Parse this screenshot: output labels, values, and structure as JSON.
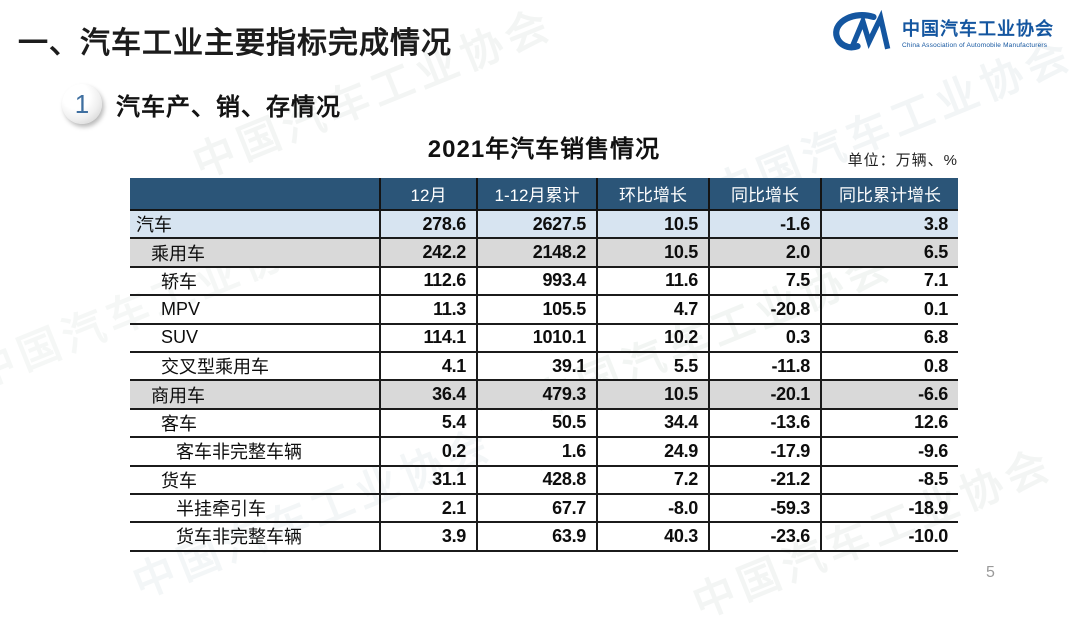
{
  "page": {
    "title": "一、汽车工业主要指标完成情况",
    "page_number": "5"
  },
  "logo": {
    "name_cn": "中国汽车工业协会",
    "name_en": "China Association of Automobile Manufacturers",
    "color": "#1456a0"
  },
  "section": {
    "number": "1",
    "title": "汽车产、销、存情况"
  },
  "table": {
    "title": "2021年汽车销售情况",
    "unit_note": "单位：万辆、%",
    "columns": [
      "",
      "12月",
      "1-12月累计",
      "环比增长",
      "同比增长",
      "同比累计增长"
    ],
    "rows": [
      {
        "label": "汽车",
        "level": 0,
        "shade": "blue",
        "values": [
          "278.6",
          "2627.5",
          "10.5",
          "-1.6",
          "3.8"
        ]
      },
      {
        "label": "乘用车",
        "level": 1,
        "shade": "gray",
        "values": [
          "242.2",
          "2148.2",
          "10.5",
          "2.0",
          "6.5"
        ]
      },
      {
        "label": "轿车",
        "level": 2,
        "shade": null,
        "values": [
          "112.6",
          "993.4",
          "11.6",
          "7.5",
          "7.1"
        ]
      },
      {
        "label": "MPV",
        "level": 2,
        "shade": null,
        "values": [
          "11.3",
          "105.5",
          "4.7",
          "-20.8",
          "0.1"
        ]
      },
      {
        "label": "SUV",
        "level": 2,
        "shade": null,
        "values": [
          "114.1",
          "1010.1",
          "10.2",
          "0.3",
          "6.8"
        ]
      },
      {
        "label": "交叉型乘用车",
        "level": 2,
        "shade": null,
        "values": [
          "4.1",
          "39.1",
          "5.5",
          "-11.8",
          "0.8"
        ]
      },
      {
        "label": "商用车",
        "level": 1,
        "shade": "gray",
        "values": [
          "36.4",
          "479.3",
          "10.5",
          "-20.1",
          "-6.6"
        ]
      },
      {
        "label": "客车",
        "level": 2,
        "shade": null,
        "values": [
          "5.4",
          "50.5",
          "34.4",
          "-13.6",
          "12.6"
        ]
      },
      {
        "label": "客车非完整车辆",
        "level": 3,
        "shade": null,
        "values": [
          "0.2",
          "1.6",
          "24.9",
          "-17.9",
          "-9.6"
        ]
      },
      {
        "label": "货车",
        "level": 2,
        "shade": null,
        "values": [
          "31.1",
          "428.8",
          "7.2",
          "-21.2",
          "-8.5"
        ]
      },
      {
        "label": "半挂牵引车",
        "level": 3,
        "shade": null,
        "values": [
          "2.1",
          "67.7",
          "-8.0",
          "-59.3",
          "-18.9"
        ]
      },
      {
        "label": "货车非完整车辆",
        "level": 3,
        "shade": null,
        "values": [
          "3.9",
          "63.9",
          "40.3",
          "-23.6",
          "-10.0"
        ]
      }
    ]
  },
  "watermark": {
    "text": "中国汽车工业协会"
  },
  "colors": {
    "header_bg": "#2b5578",
    "row_highlight_blue": "#d7e4f1",
    "row_highlight_gray": "#d9d9d9",
    "logo_blue": "#1456a0",
    "border": "#1b1b1b"
  }
}
